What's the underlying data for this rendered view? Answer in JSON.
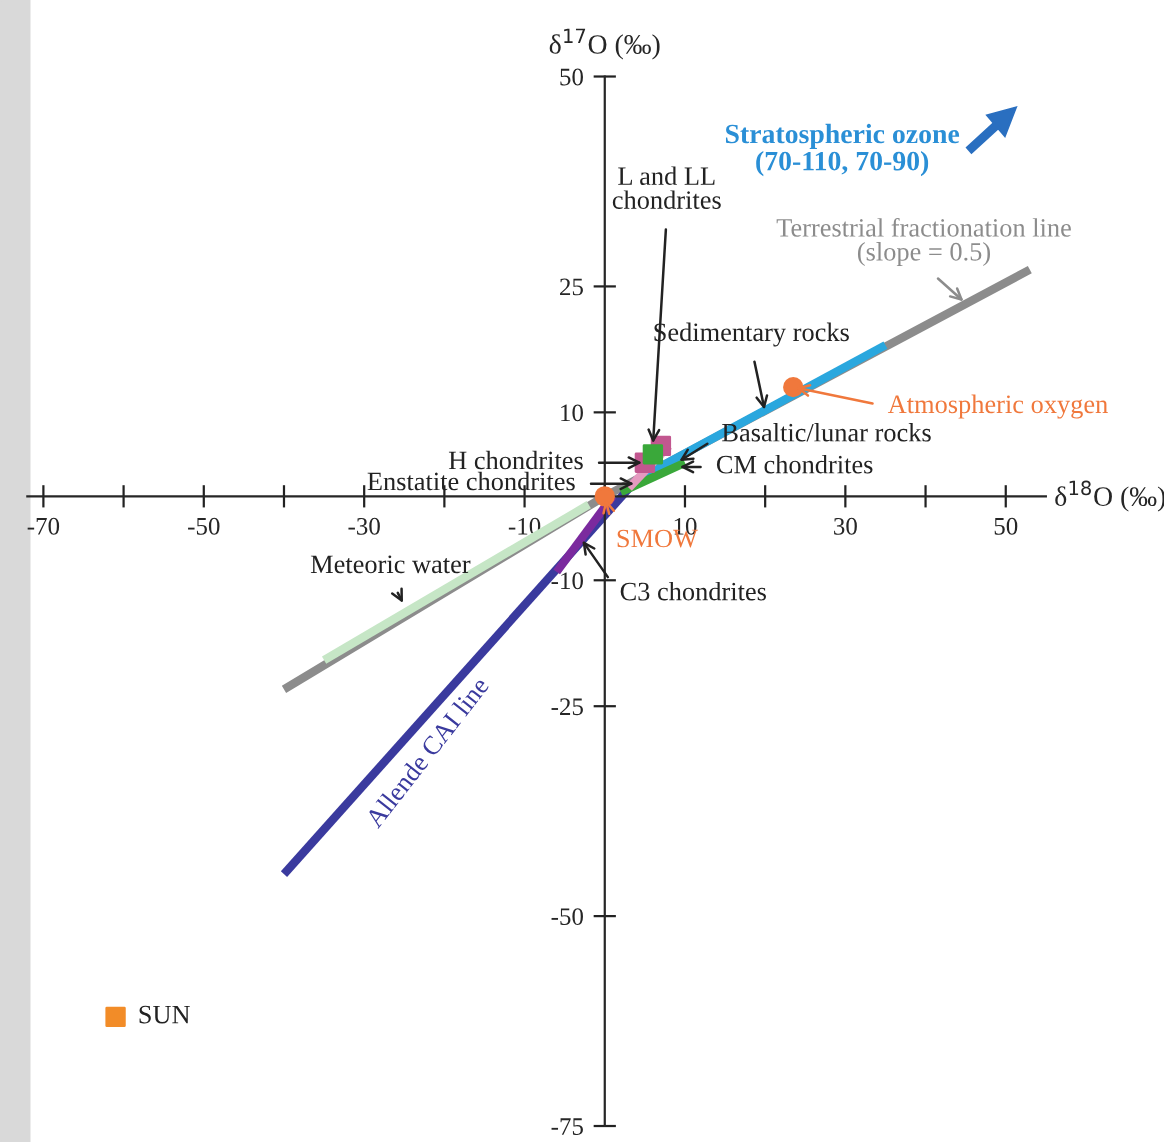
{
  "chart_data": {
    "type": "line",
    "xlabel": "δ$^{18}$O (‰)",
    "ylabel": "δ$^{17}$O (‰)",
    "xlim": [
      -72,
      55
    ],
    "ylim": [
      -75,
      50
    ],
    "xticks": [
      -70,
      {
        "value": -60,
        "label": null
      },
      -50,
      {
        "value": -40,
        "label": null
      },
      -30,
      {
        "value": -20,
        "label": null
      },
      -10,
      {
        "value": 0,
        "label": null
      },
      10,
      {
        "value": 20,
        "label": null
      },
      30,
      {
        "value": 40,
        "label": null
      },
      50
    ],
    "yticks": [
      -75,
      -50,
      -25,
      -10,
      10,
      25,
      50
    ],
    "grid": false,
    "series": [
      {
        "color": "#8c8c8c",
        "x": [
          -40,
          0,
          53
        ],
        "values": [
          -23,
          0,
          27
        ]
      },
      {
        "color": "#c6e6c6",
        "x": [
          -35,
          -2
        ],
        "values": [
          -19.5,
          -1
        ]
      },
      {
        "color": "#2aa7de",
        "x": [
          4,
          35
        ],
        "values": [
          2,
          18
        ]
      },
      {
        "color": "#3a3a9e",
        "x": [
          -40,
          4
        ],
        "values": [
          -45,
          2
        ]
      },
      {
        "color": "#3aa83a",
        "x": [
          2,
          10
        ],
        "values": [
          0.5,
          4
        ]
      },
      {
        "color": "#7b2a9e",
        "x": [
          -6,
          1
        ],
        "values": [
          -9,
          0
        ]
      },
      {
        "color": "#e59ac0",
        "x": [
          3,
          8
        ],
        "values": [
          1,
          6
        ]
      },
      {
        "type": "scatter",
        "marker": "square",
        "color": "#c2578f",
        "x": [
          5,
          7
        ],
        "values": [
          4,
          6
        ]
      },
      {
        "type": "scatter",
        "marker": "square",
        "color": "#3aa83a",
        "x": [
          6
        ],
        "values": [
          5
        ]
      },
      {
        "type": "scatter",
        "marker": "circle",
        "color": "#f0783c",
        "x": [
          0,
          23.5
        ],
        "values": [
          0,
          13
        ]
      },
      {
        "type": "scatter",
        "marker": "square",
        "color": "#f28c28",
        "x": [
          -61
        ],
        "values": [
          -62
        ]
      }
    ],
    "annotations": [
      "Stratospheric ozone\n(70-110, 70-90)",
      {
        "text": "Terrestrial fractionation line\n(slope = 0.5)",
        "x": 45,
        "y": 23
      },
      {
        "text": "Sedimentary rocks",
        "x": 20,
        "y": 10
      },
      {
        "text": "L and LL\nchondrites",
        "x": 6,
        "y": 6
      },
      {
        "text": "H chondrites",
        "x": 5,
        "y": 4
      },
      {
        "text": "Enstatite chondrites",
        "x": 4,
        "y": 1.5
      },
      {
        "text": "Basaltic/lunar rocks",
        "x": 9,
        "y": 4
      },
      {
        "text": "CM chondrites",
        "x": 9,
        "y": 3.5
      },
      {
        "text": "Atmospheric oxygen",
        "x": 23.5,
        "y": 13
      },
      {
        "text": "SMOW",
        "x": 0,
        "y": 0
      },
      {
        "text": "C3 chondrites",
        "x": -3,
        "y": -5
      },
      {
        "text": "Meteoric water",
        "x": -25,
        "y": -13
      },
      {
        "text": "Allende CAI line",
        "x": -24,
        "y": -28
      },
      {
        "text": "SUN",
        "x": -61,
        "y": -62
      }
    ]
  }
}
